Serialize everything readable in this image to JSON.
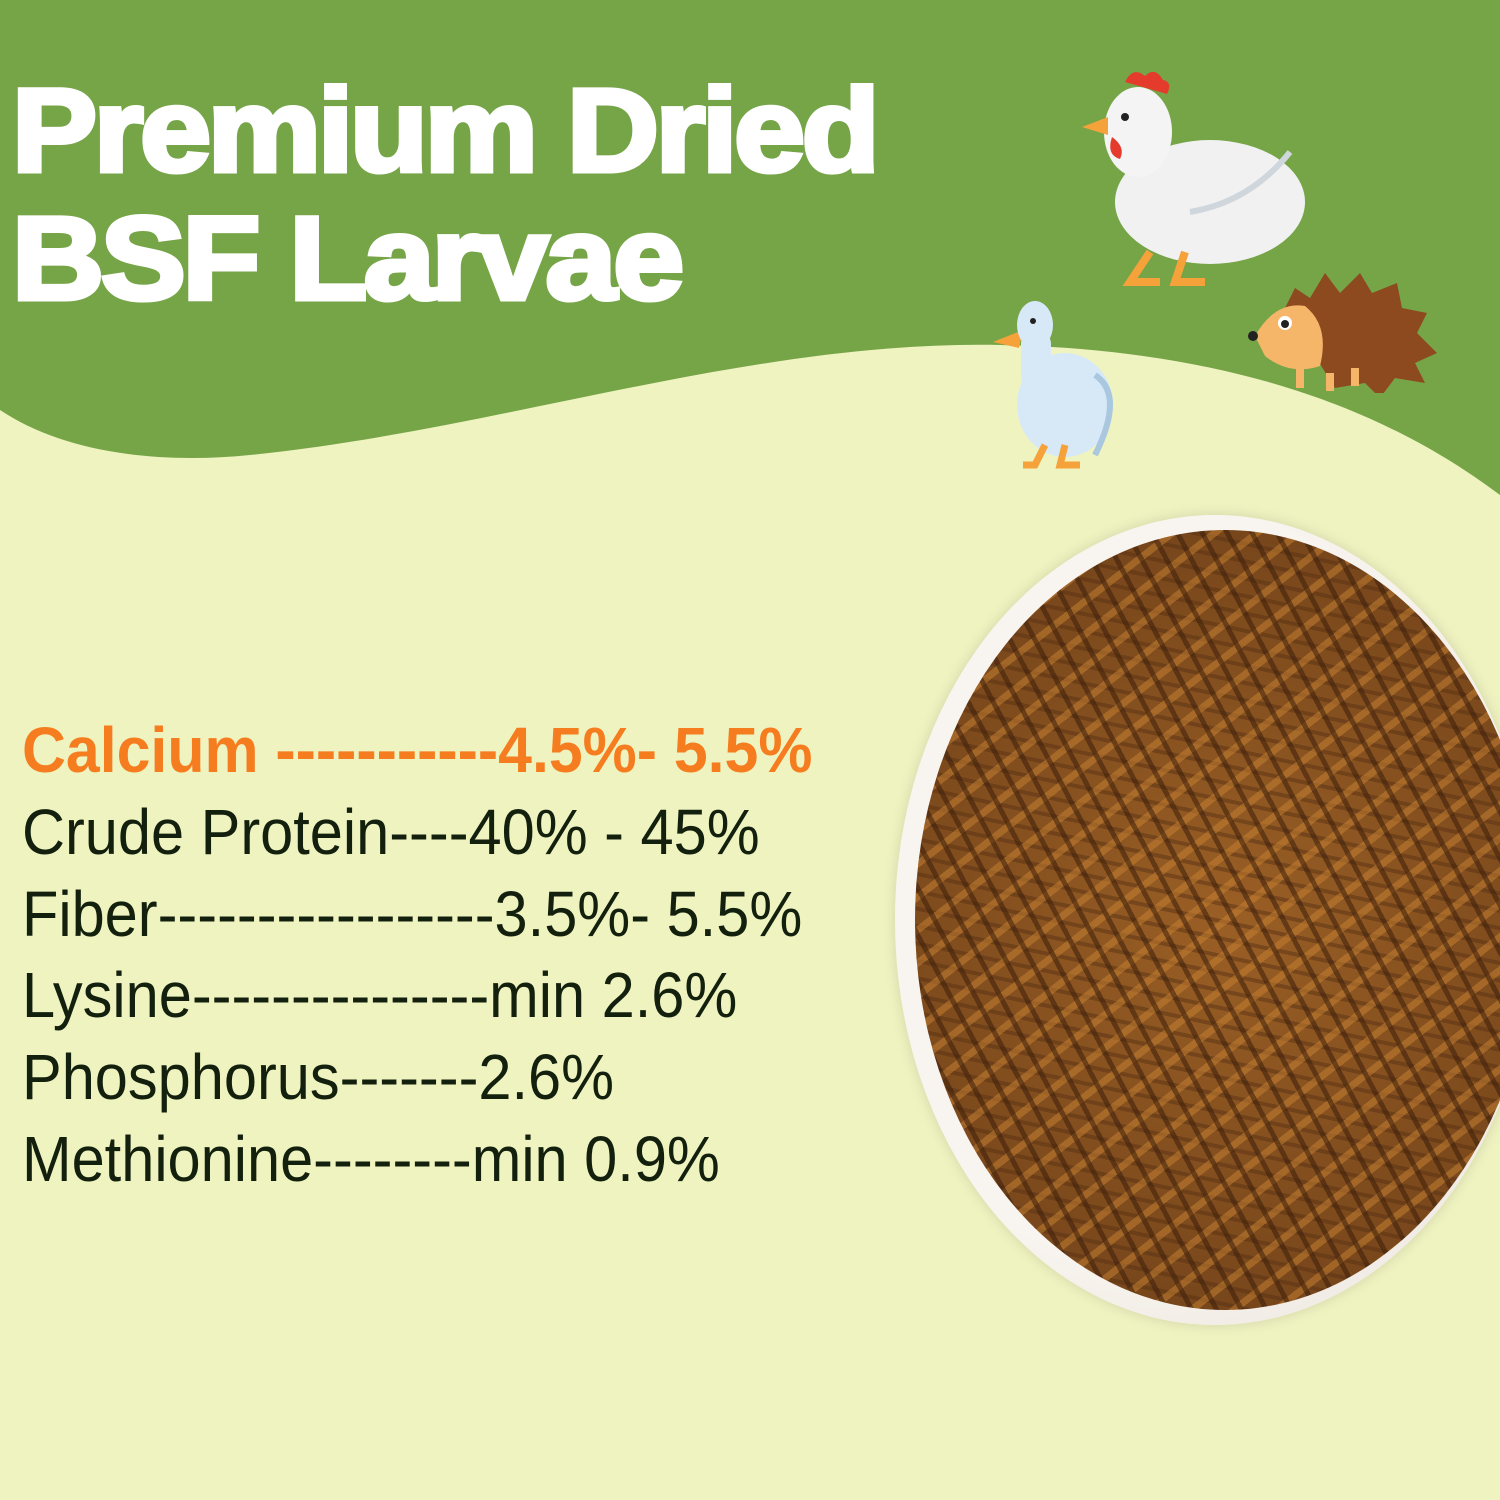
{
  "title": {
    "line1": "Premium Dried",
    "line2": "BSF Larvae"
  },
  "nutrients": [
    {
      "text": "Calcium -----------4.5%- 5.5%",
      "highlight": true
    },
    {
      "text": "Crude Protein----40% - 45%"
    },
    {
      "text": "Fiber-----------------3.5%- 5.5%"
    },
    {
      "text": "Lysine---------------min 2.6%"
    },
    {
      "text": "Phosphorus-------2.6%"
    },
    {
      "text": "Methionine--------min 0.9%"
    }
  ],
  "colors": {
    "header_green": "#76a548",
    "background": "#eff3c0",
    "highlight": "#f57d1f",
    "text": "#14200e"
  },
  "illustrations": [
    "chicken-icon",
    "duck-icon",
    "hedgehog-icon",
    "larvae-plate-photo"
  ]
}
